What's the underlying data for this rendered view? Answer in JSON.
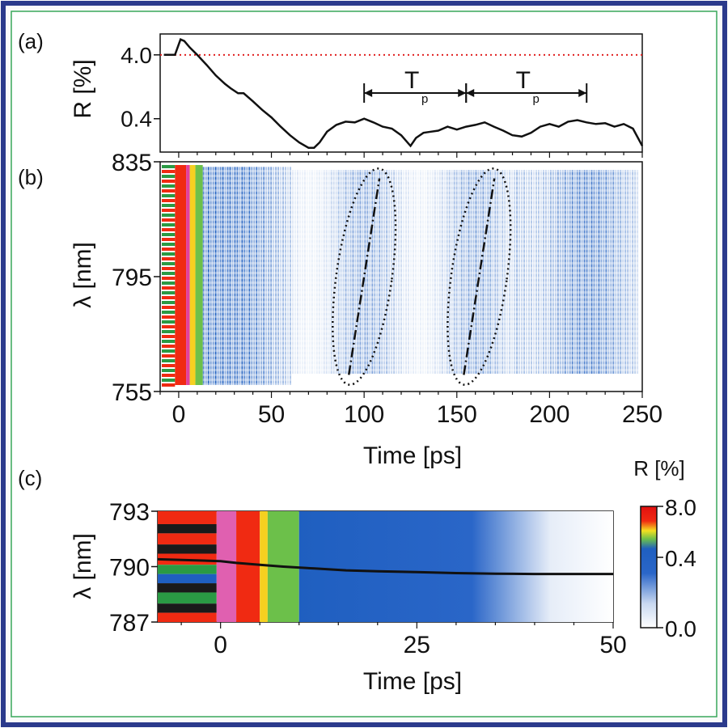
{
  "panels": {
    "a": {
      "letter": "(a)",
      "ylabel": "R [%]",
      "period_label_left": "T",
      "period_label_right": "T",
      "period_sub": "p"
    },
    "b": {
      "letter": "(b)",
      "ylabel": "λ [nm]",
      "xlabel": "Time [ps]"
    },
    "c": {
      "letter": "(c)",
      "ylabel": "λ [nm]",
      "xlabel": "Time [ps]",
      "colorbar_title": "R [%]"
    }
  },
  "colors": {
    "border": "#2b3a8c",
    "trace": "#111111",
    "reference_line": "#e02020",
    "blue": "#1f5fc0",
    "green": "#6cc04a",
    "red": "#f02a12"
  },
  "chart_data": [
    {
      "type": "line",
      "panel": "a",
      "ylabel": "R [%]",
      "xlim": [
        -10,
        250
      ],
      "yscale": "log",
      "yticks": [
        {
          "v": 4.0,
          "label": "4.0"
        },
        {
          "v": 0.4,
          "label": "0.4"
        }
      ],
      "reference_line": {
        "y": 4.0,
        "style": "dotted",
        "color": "#e02020"
      },
      "x": [
        -8,
        -2,
        0,
        1,
        3,
        6,
        10,
        15,
        20,
        25,
        28,
        32,
        35,
        40,
        45,
        50,
        55,
        60,
        65,
        70,
        73,
        76,
        80,
        85,
        90,
        95,
        100,
        105,
        110,
        115,
        120,
        125,
        128,
        132,
        136,
        140,
        145,
        150,
        155,
        160,
        165,
        170,
        175,
        180,
        185,
        190,
        195,
        200,
        205,
        210,
        215,
        220,
        225,
        230,
        235,
        240,
        245,
        250
      ],
      "y": [
        4.0,
        4.0,
        5.8,
        7.0,
        6.6,
        5.2,
        4.0,
        2.8,
        1.9,
        1.4,
        1.2,
        1.0,
        1.0,
        0.75,
        0.55,
        0.42,
        0.3,
        0.22,
        0.17,
        0.14,
        0.14,
        0.17,
        0.25,
        0.32,
        0.36,
        0.35,
        0.4,
        0.35,
        0.3,
        0.28,
        0.22,
        0.15,
        0.2,
        0.24,
        0.25,
        0.26,
        0.3,
        0.27,
        0.3,
        0.32,
        0.35,
        0.3,
        0.26,
        0.22,
        0.21,
        0.24,
        0.3,
        0.33,
        0.3,
        0.36,
        0.38,
        0.35,
        0.33,
        0.34,
        0.3,
        0.33,
        0.28,
        0.15
      ],
      "annotations": [
        {
          "type": "period-arrow",
          "from": 100,
          "to": 155,
          "label": "Tp"
        },
        {
          "type": "period-arrow",
          "from": 155,
          "to": 220,
          "label": "Tp"
        }
      ]
    },
    {
      "type": "heatmap",
      "panel": "b",
      "xlabel": "Time [ps]",
      "ylabel": "λ [nm]",
      "xlim": [
        -10,
        250
      ],
      "ylim": [
        755,
        835
      ],
      "xticks": [
        0,
        50,
        100,
        150,
        200,
        250
      ],
      "yticks": [
        755,
        795,
        835
      ],
      "ellipses": [
        {
          "cx": 100,
          "cy": 795,
          "rx": 15,
          "ry": 38
        },
        {
          "cx": 162,
          "cy": 795,
          "rx": 15,
          "ry": 38
        }
      ]
    },
    {
      "type": "heatmap",
      "panel": "c",
      "xlabel": "Time [ps]",
      "ylabel": "λ [nm]",
      "xlim": [
        -8,
        50
      ],
      "ylim": [
        787,
        793
      ],
      "xticks": [
        0,
        25,
        50
      ],
      "yticks": [
        787,
        790,
        793
      ],
      "trace": {
        "x": [
          -8,
          0,
          2,
          5,
          8,
          12,
          16,
          20,
          25,
          30,
          35,
          40,
          45,
          50
        ],
        "y": [
          790.4,
          790.3,
          790.2,
          790.1,
          790.0,
          789.9,
          789.8,
          789.75,
          789.7,
          789.65,
          789.62,
          789.6,
          789.6,
          789.6
        ]
      },
      "colorbar": {
        "title": "R [%]",
        "ticks": [
          {
            "v": 8.0,
            "label": "8.0"
          },
          {
            "v": 0.4,
            "label": "0.4"
          },
          {
            "v": 0.0,
            "label": "0.0"
          }
        ]
      }
    }
  ]
}
